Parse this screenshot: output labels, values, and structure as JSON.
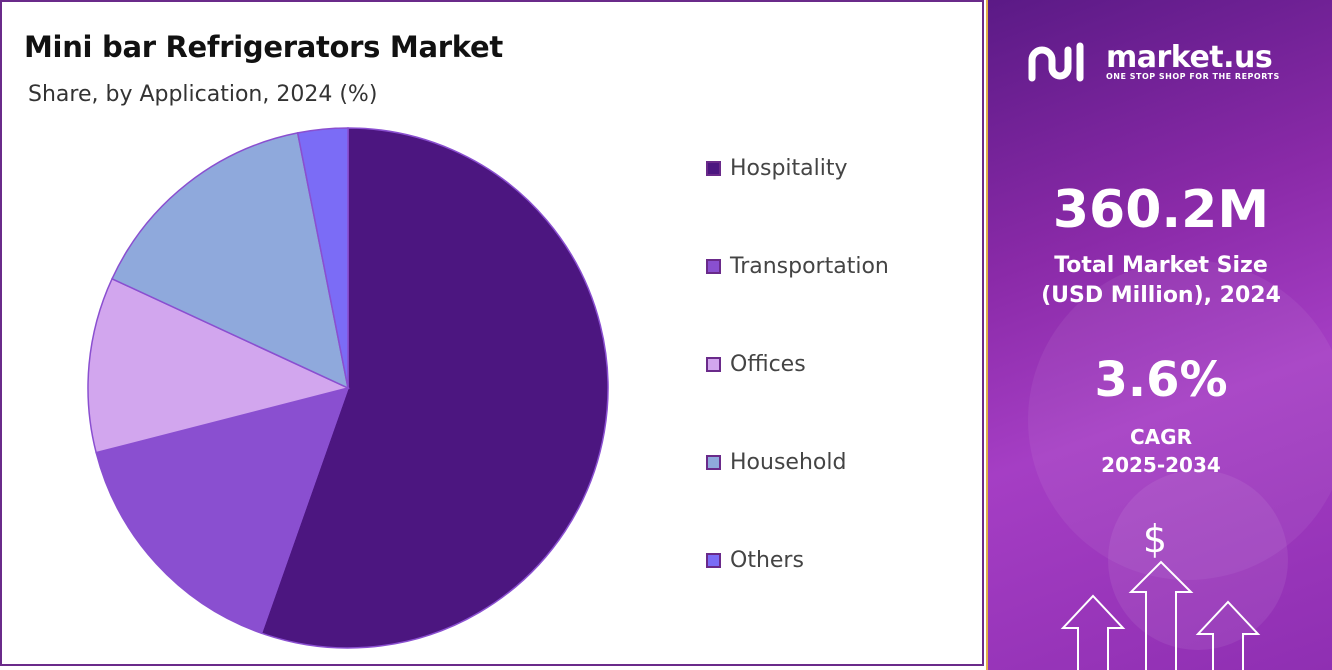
{
  "chart_data": {
    "type": "pie",
    "title": "Mini bar Refrigerators Market",
    "subtitle": "Share, by Application, 2024 (%)",
    "categories": [
      "Hospitality",
      "Transportation",
      "Offices",
      "Household",
      "Others"
    ],
    "values": [
      55.4,
      15.6,
      10.9,
      15.0,
      3.1
    ],
    "colors": [
      "#4c1680",
      "#8a4fd0",
      "#d2a6ee",
      "#8fa9dc",
      "#7b6cf6"
    ],
    "legend_position": "right"
  },
  "sidebar": {
    "brand": {
      "name": "market.us",
      "tagline": "ONE STOP SHOP FOR THE REPORTS"
    },
    "market_size": {
      "value": "360.2M",
      "label_line1": "Total Market Size",
      "label_line2": "(USD Million), 2024"
    },
    "cagr": {
      "value": "3.6%",
      "label_line1": "CAGR",
      "label_line2": "2025-2034"
    },
    "currency_symbol": "$"
  }
}
